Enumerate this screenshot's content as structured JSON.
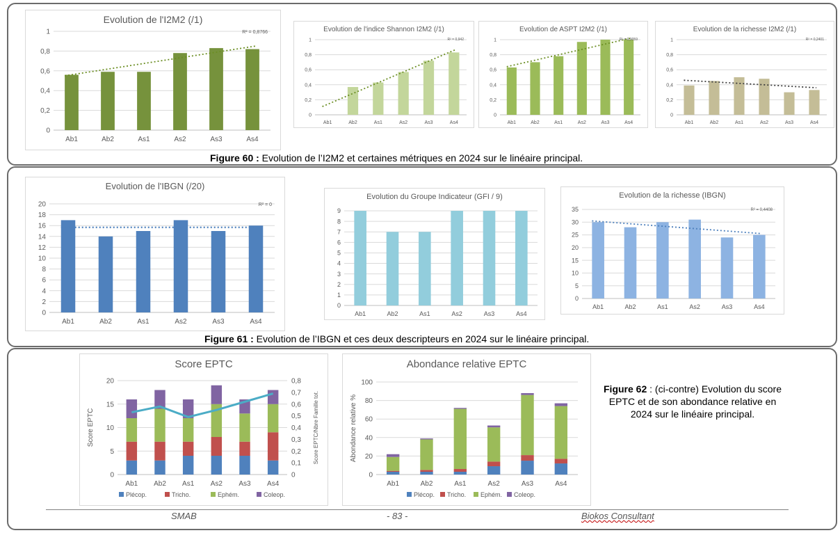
{
  "captions": {
    "fig60_label": "Figure 60 :",
    "fig60_text": " Evolution de l’I2M2 et certaines métriques en 2024 sur le linéaire principal.",
    "fig61_label": "Figure 61 :",
    "fig61_text": " Evolution de l’IBGN et ces deux descripteurs en 2024 sur le linéaire principal.",
    "fig62_label": "Figure 62",
    "fig62_text": " : (ci-contre) Evolution du score EPTC et de son abondance relative en 2024 sur le linéaire principal."
  },
  "footer": {
    "left": "SMAB",
    "center": "- 83 -",
    "right": "Biokos Consultant"
  },
  "colors": {
    "i2m2": "#76923c",
    "shannon": "#c3d69b",
    "aspt": "#9bbb59",
    "richesse_i2m2": "#c4bd97",
    "ibgn": "#4f81bd",
    "gfi": "#92cddc",
    "richesse_ibgn": "#8db3e2",
    "plecop": "#4f81bd",
    "tricho": "#c0504d",
    "ephem": "#9bbb59",
    "coleop": "#8064a2",
    "line_eptc": "#4bacc6"
  },
  "chart_data": [
    {
      "id": "i2m2",
      "type": "bar",
      "title": "Evolution  de l'I2M2 (/1)",
      "categories": [
        "Ab1",
        "Ab2",
        "As1",
        "As2",
        "As3",
        "As4"
      ],
      "values": [
        0.56,
        0.59,
        0.59,
        0.78,
        0.83,
        0.82
      ],
      "ylim": [
        0,
        1
      ],
      "yticks": [
        "0",
        "0,2",
        "0,4",
        "0,6",
        "0,8",
        "1"
      ],
      "trendline": {
        "start": 0.55,
        "end": 0.85,
        "r2": "R² = 0,8766"
      },
      "grid": true
    },
    {
      "id": "shannon",
      "type": "bar",
      "title": "Evolution de l'indice  Shannon I2M2 (/1)",
      "categories": [
        "Ab1",
        "Ab2",
        "As1",
        "As2",
        "As3",
        "As4"
      ],
      "values": [
        0,
        0.37,
        0.43,
        0.57,
        0.72,
        0.83
      ],
      "ylim": [
        0,
        1
      ],
      "yticks": [
        "0",
        "0,2",
        "0,4",
        "0,6",
        "0,8",
        "1"
      ],
      "trendline": {
        "start": 0.11,
        "end": 0.87,
        "r2": "R² = 0,942"
      },
      "grid": true
    },
    {
      "id": "aspt",
      "type": "bar",
      "title": "Evolution de ASPT I2M2 (/1)",
      "categories": [
        "Ab1",
        "Ab2",
        "As1",
        "As2",
        "As3",
        "As4"
      ],
      "values": [
        0.63,
        0.7,
        0.78,
        0.97,
        1.0,
        1.0
      ],
      "ylim": [
        0,
        1
      ],
      "yticks": [
        "0",
        "0,2",
        "0,4",
        "0,6",
        "0,8",
        "1"
      ],
      "trendline": {
        "start": 0.64,
        "end": 1.02,
        "r2": "R² = 0,9059"
      },
      "grid": true
    },
    {
      "id": "richesse_i2m2",
      "type": "bar",
      "title": "Evolution de la richesse I2M2 (/1)",
      "categories": [
        "Ab1",
        "Ab2",
        "As1",
        "As2",
        "As3",
        "As4"
      ],
      "values": [
        0.39,
        0.45,
        0.5,
        0.48,
        0.3,
        0.33
      ],
      "ylim": [
        0,
        1
      ],
      "yticks": [
        "0",
        "0,2",
        "0,4",
        "0,6",
        "0,8",
        "1"
      ],
      "trendline": {
        "start": 0.46,
        "end": 0.36,
        "r2": "R² = 0,2401"
      },
      "grid": true
    },
    {
      "id": "ibgn",
      "type": "bar",
      "title": "Evolution  de l'IBGN (/20)",
      "categories": [
        "Ab1",
        "Ab2",
        "As1",
        "As2",
        "As3",
        "As4"
      ],
      "values": [
        17,
        14,
        15,
        17,
        15,
        16
      ],
      "ylim": [
        0,
        20
      ],
      "yticks": [
        "0",
        "2",
        "4",
        "6",
        "8",
        "10",
        "12",
        "14",
        "16",
        "18",
        "20"
      ],
      "trendline": {
        "start": 15.67,
        "end": 15.67,
        "r2": "R² = 0"
      },
      "grid": true
    },
    {
      "id": "gfi",
      "type": "bar",
      "title": "Evolution   du Groupe Indicateur (GFI / 9)",
      "categories": [
        "Ab1",
        "Ab2",
        "As1",
        "As2",
        "As3",
        "As4"
      ],
      "values": [
        9,
        7,
        7,
        9,
        9,
        9
      ],
      "ylim": [
        0,
        9
      ],
      "yticks": [
        "0",
        "1",
        "2",
        "3",
        "4",
        "5",
        "6",
        "7",
        "8",
        "9"
      ],
      "grid": true
    },
    {
      "id": "richesse_ibgn",
      "type": "bar",
      "title": "Evolution de la richesse (IBGN)",
      "categories": [
        "Ab1",
        "Ab2",
        "As1",
        "As2",
        "As3",
        "As4"
      ],
      "values": [
        30,
        28,
        30,
        31,
        24,
        25
      ],
      "ylim": [
        0,
        35
      ],
      "yticks": [
        "0",
        "5",
        "10",
        "15",
        "20",
        "25",
        "30",
        "35"
      ],
      "trendline": {
        "start": 30.5,
        "end": 25.5,
        "r2": "R² = 0,4408"
      },
      "grid": true
    },
    {
      "id": "score_eptc",
      "type": "bar",
      "stacked": true,
      "title": "Score EPTC",
      "ylabel": "Score EPTC",
      "y2label": "Score EPTC/Nbre Famille tot.",
      "categories": [
        "Ab1",
        "Ab2",
        "As1",
        "As2",
        "As3",
        "As4"
      ],
      "series": [
        {
          "name": "Plécop.",
          "values": [
            3,
            3,
            4,
            4,
            4,
            3
          ]
        },
        {
          "name": "Tricho.",
          "values": [
            4,
            4,
            3,
            4,
            3,
            6
          ]
        },
        {
          "name": "Ephém.",
          "values": [
            5,
            7,
            5,
            7,
            6,
            6
          ]
        },
        {
          "name": "Coleop.",
          "values": [
            4,
            4,
            4,
            4,
            3,
            3
          ]
        }
      ],
      "line": {
        "axis": "right",
        "values": [
          0.53,
          0.58,
          0.49,
          0.55,
          0.62,
          0.69
        ]
      },
      "ylim": [
        0,
        20
      ],
      "y2lim": [
        0,
        0.8
      ],
      "yticks": [
        "0",
        "5",
        "10",
        "15",
        "20"
      ],
      "y2ticks": [
        "0",
        "0,1",
        "0,2",
        "0,3",
        "0,4",
        "0,5",
        "0,6",
        "0,7",
        "0,8"
      ],
      "legend": "bottom",
      "grid": true
    },
    {
      "id": "abondance_eptc",
      "type": "bar",
      "stacked": true,
      "title": "Abondance relative EPTC",
      "ylabel": "Abondance relative %",
      "categories": [
        "Ab1",
        "Ab2",
        "As1",
        "As2",
        "As3",
        "As4"
      ],
      "series": [
        {
          "name": "Plécop.",
          "values": [
            3,
            3,
            3,
            9,
            15,
            12
          ]
        },
        {
          "name": "Tricho.",
          "values": [
            1,
            2,
            3,
            5,
            6,
            5
          ]
        },
        {
          "name": "Ephém.",
          "values": [
            15,
            33,
            65,
            37,
            65,
            57
          ]
        },
        {
          "name": "Coleop.",
          "values": [
            3,
            1,
            1,
            2,
            2,
            3
          ]
        }
      ],
      "ylim": [
        0,
        100
      ],
      "yticks": [
        "0",
        "20",
        "40",
        "60",
        "80",
        "100"
      ],
      "legend": "bottom",
      "grid": true
    }
  ]
}
